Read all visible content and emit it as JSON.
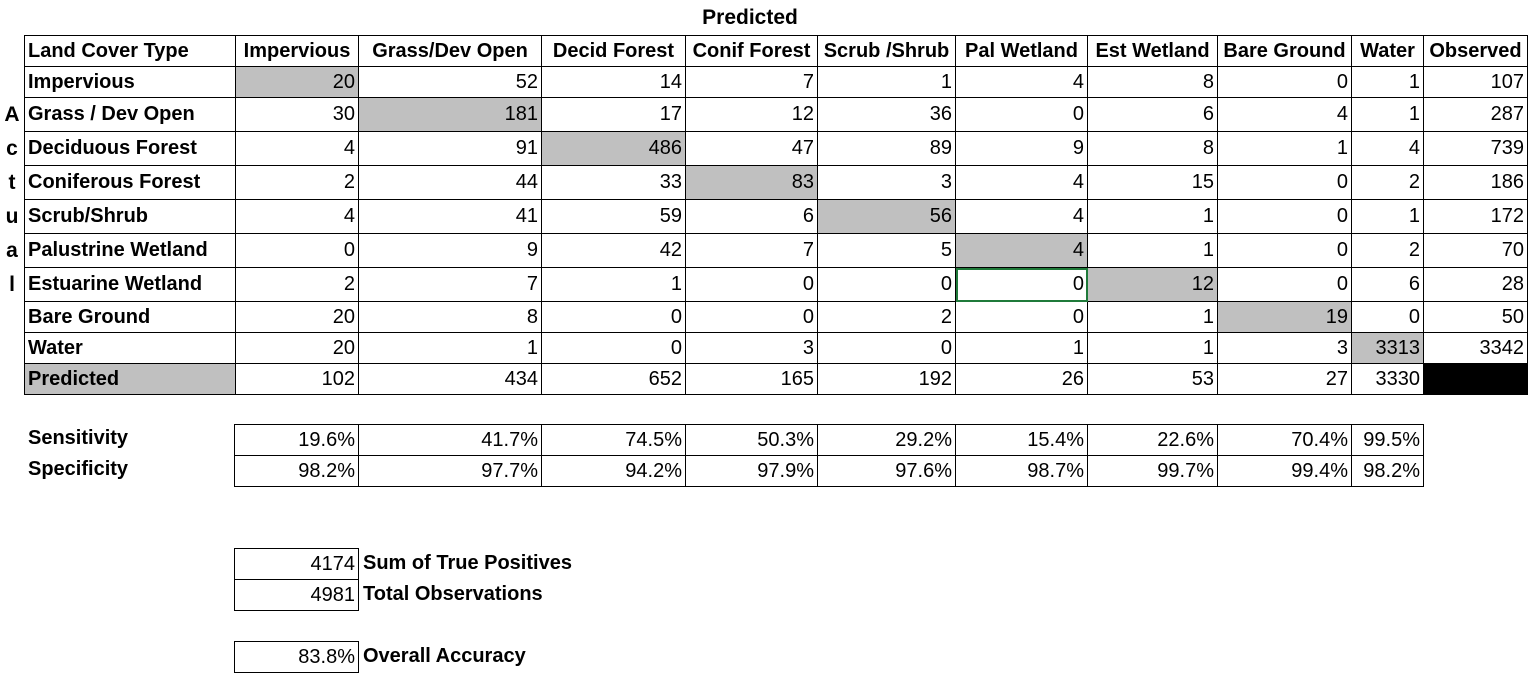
{
  "title": "Predicted",
  "side_label": [
    "A",
    "c",
    "t",
    "u",
    "a",
    "l"
  ],
  "header": [
    "Land Cover Type",
    "Impervious",
    "Grass/Dev Open",
    "Decid Forest",
    "Conif Forest",
    "Scrub /Shrub",
    "Pal Wetland",
    "Est Wetland",
    "Bare Ground",
    "Water",
    "Observed"
  ],
  "rows": [
    {
      "label": "Impervious",
      "values": [
        "20",
        "52",
        "14",
        "7",
        "1",
        "4",
        "8",
        "0",
        "1",
        "107"
      ]
    },
    {
      "label": "Grass / Dev Open",
      "values": [
        "30",
        "181",
        "17",
        "12",
        "36",
        "0",
        "6",
        "4",
        "1",
        "287"
      ]
    },
    {
      "label": "Deciduous Forest",
      "values": [
        "4",
        "91",
        "486",
        "47",
        "89",
        "9",
        "8",
        "1",
        "4",
        "739"
      ]
    },
    {
      "label": "Coniferous Forest",
      "values": [
        "2",
        "44",
        "33",
        "83",
        "3",
        "4",
        "15",
        "0",
        "2",
        "186"
      ]
    },
    {
      "label": "Scrub/Shrub",
      "values": [
        "4",
        "41",
        "59",
        "6",
        "56",
        "4",
        "1",
        "0",
        "1",
        "172"
      ]
    },
    {
      "label": "Palustrine Wetland",
      "values": [
        "0",
        "9",
        "42",
        "7",
        "5",
        "4",
        "1",
        "0",
        "2",
        "70"
      ]
    },
    {
      "label": "Estuarine Wetland",
      "values": [
        "2",
        "7",
        "1",
        "0",
        "0",
        "0",
        "12",
        "0",
        "6",
        "28"
      ]
    },
    {
      "label": "Bare Ground",
      "values": [
        "20",
        "8",
        "0",
        "0",
        "2",
        "0",
        "1",
        "19",
        "0",
        "50"
      ]
    },
    {
      "label": "Water",
      "values": [
        "20",
        "1",
        "0",
        "3",
        "0",
        "1",
        "1",
        "3",
        "3313",
        "3342"
      ]
    }
  ],
  "predicted_row": {
    "label": "Predicted",
    "values": [
      "102",
      "434",
      "652",
      "165",
      "192",
      "26",
      "53",
      "27",
      "3330",
      ""
    ]
  },
  "sensitivity": {
    "label": "Sensitivity",
    "values": [
      "19.6%",
      "41.7%",
      "74.5%",
      "50.3%",
      "29.2%",
      "15.4%",
      "22.6%",
      "70.4%",
      "99.5%"
    ]
  },
  "specificity": {
    "label": "Specificity",
    "values": [
      "98.2%",
      "97.7%",
      "94.2%",
      "97.9%",
      "97.6%",
      "98.7%",
      "99.7%",
      "99.4%",
      "98.2%"
    ]
  },
  "summary": {
    "true_positives": {
      "value": "4174",
      "label": "Sum of True Positives"
    },
    "total_obs": {
      "value": "4981",
      "label": "Total Observations"
    },
    "overall_accuracy": {
      "value": "83.8%",
      "label": "Overall Accuracy"
    }
  }
}
